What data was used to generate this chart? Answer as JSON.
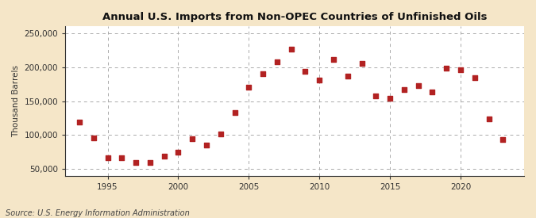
{
  "title": "Annual U.S. Imports from Non-OPEC Countries of Unfinished Oils",
  "ylabel": "Thousand Barrels",
  "source": "Source: U.S. Energy Information Administration",
  "fig_background_color": "#f5e6c8",
  "plot_background_color": "#ffffff",
  "marker_color": "#b22222",
  "grid_color": "#aaaaaa",
  "years": [
    1993,
    1994,
    1995,
    1996,
    1997,
    1998,
    1999,
    2000,
    2001,
    2002,
    2003,
    2004,
    2005,
    2006,
    2007,
    2008,
    2009,
    2010,
    2011,
    2012,
    2013,
    2014,
    2015,
    2016,
    2017,
    2018,
    2019,
    2020,
    2021,
    2022,
    2023
  ],
  "values": [
    119000,
    96000,
    67000,
    66000,
    59000,
    59000,
    69000,
    75000,
    95000,
    85000,
    101000,
    133000,
    170000,
    190000,
    208000,
    227000,
    194000,
    181000,
    211000,
    187000,
    206000,
    158000,
    154000,
    167000,
    173000,
    163000,
    198000,
    196000,
    185000,
    124000,
    93000
  ],
  "ylim": [
    40000,
    260000
  ],
  "yticks": [
    50000,
    100000,
    150000,
    200000,
    250000
  ],
  "xticks": [
    1995,
    2000,
    2005,
    2010,
    2015,
    2020
  ],
  "xlim": [
    1992.0,
    2024.5
  ]
}
